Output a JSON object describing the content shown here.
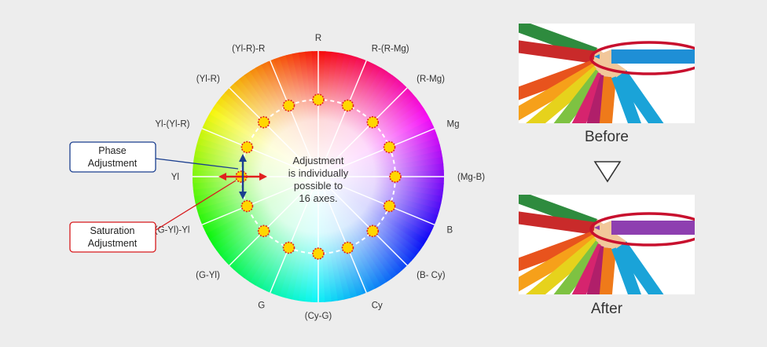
{
  "wheel": {
    "axes": [
      "R",
      "R-(R-Mg)",
      "(R-Mg)",
      "Mg",
      "(Mg-B)",
      "B",
      "(B- Cy)",
      "Cy",
      "(Cy-G)",
      "G",
      "(G-Yl)",
      "(G-Yl)-Yl",
      "Yl",
      "Yl-(Yl-R)",
      "(Yl-R)",
      "(Yl-R)-R"
    ],
    "center_lines": [
      "Adjustment",
      "is individually",
      "possible to",
      "16 axes."
    ]
  },
  "callouts": {
    "phase": [
      "Phase",
      "Adjustment"
    ],
    "saturation": [
      "Saturation",
      "Adjustment"
    ]
  },
  "comparison": {
    "before_label": "Before",
    "after_label": "After"
  },
  "colors": {
    "callout_phase": "#1b3f8f",
    "callout_saturation": "#d7191c",
    "highlight_ring": "#c8102e",
    "marker_fill": "#ffd700",
    "marker_ring": "#e02020"
  }
}
